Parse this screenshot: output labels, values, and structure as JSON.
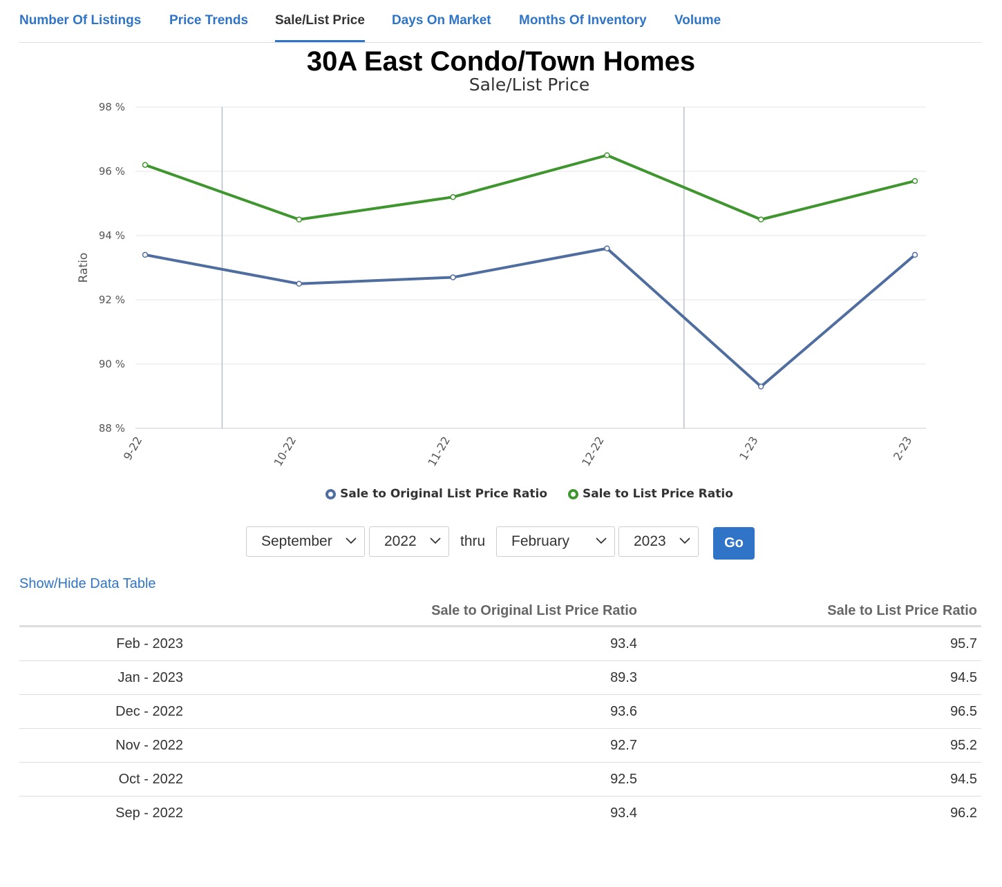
{
  "tabs": [
    {
      "label": "Number Of Listings"
    },
    {
      "label": "Price Trends"
    },
    {
      "label": "Sale/List Price",
      "active": true
    },
    {
      "label": "Days On Market"
    },
    {
      "label": "Months Of Inventory"
    },
    {
      "label": "Volume"
    }
  ],
  "controls": {
    "from_month": "September",
    "from_year": "2022",
    "thru_label": "thru",
    "to_month": "February",
    "to_year": "2023",
    "go_label": "Go"
  },
  "table_toggle_label": "Show/Hide Data Table",
  "table": {
    "headers": [
      "",
      "Sale to Original List Price Ratio",
      "Sale to List Price Ratio"
    ],
    "rows": [
      [
        "Feb - 2023",
        "93.4",
        "95.7"
      ],
      [
        "Jan - 2023",
        "89.3",
        "94.5"
      ],
      [
        "Dec - 2022",
        "93.6",
        "96.5"
      ],
      [
        "Nov - 2022",
        "92.7",
        "95.2"
      ],
      [
        "Oct - 2022",
        "92.5",
        "94.5"
      ],
      [
        "Sep - 2022",
        "93.4",
        "96.2"
      ]
    ]
  },
  "chart_data": {
    "type": "line",
    "title": "30A East Condo/Town Homes",
    "subtitle": "Sale/List Price",
    "xlabel": "",
    "ylabel": "Ratio",
    "categories": [
      "9-22",
      "10-22",
      "11-22",
      "12-22",
      "1-23",
      "2-23"
    ],
    "ylim": [
      88,
      98
    ],
    "yticks": [
      88,
      90,
      92,
      94,
      96,
      98
    ],
    "ytick_suffix": " %",
    "grid": true,
    "legend_position": "bottom-center",
    "series": [
      {
        "name": "Sale to Original List Price Ratio",
        "color": "#4f6e9f",
        "values": [
          93.4,
          92.5,
          92.7,
          93.6,
          89.3,
          93.4
        ]
      },
      {
        "name": "Sale to List Price Ratio",
        "color": "#3f952e",
        "values": [
          96.2,
          94.5,
          95.2,
          96.5,
          94.5,
          95.7
        ]
      }
    ],
    "year_dividers": [
      "between 9-22 and 10-22",
      "between 12-22 and 1-23"
    ]
  }
}
